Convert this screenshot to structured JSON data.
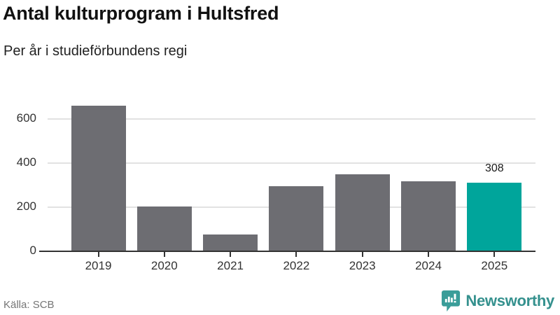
{
  "header": {
    "title": "Antal kulturprogram i Hultsfred",
    "subtitle": "Per år i studieförbundens regi"
  },
  "footer": {
    "source": "Källa: SCB",
    "brand_name": "Newsworthy",
    "brand_icon": "newsworthy-speech-bubble-barchart-icon"
  },
  "colors": {
    "bar_default": "#6d6d72",
    "bar_highlight": "#00a59b",
    "gridline": "#e2e2e2",
    "axis": "#333333",
    "tick_text": "#333333",
    "value_label_text": "#1a1a1a",
    "source_text": "#757575",
    "brand_teal": "#35918e",
    "logo_teal": "#3a9d99"
  },
  "chart_data": {
    "type": "bar",
    "title": "Antal kulturprogram i Hultsfred",
    "subtitle": "Per år i studieförbundens regi",
    "categories": [
      "2019",
      "2020",
      "2021",
      "2022",
      "2023",
      "2024",
      "2025"
    ],
    "values": [
      660,
      200,
      72,
      292,
      346,
      316,
      308
    ],
    "data_labels": [
      null,
      null,
      null,
      null,
      null,
      null,
      "308"
    ],
    "highlight_index": 6,
    "xlabel": "",
    "ylabel": "",
    "ylim": [
      0,
      700
    ],
    "yticks": [
      0,
      200,
      400,
      600
    ],
    "grid": true,
    "legend": false,
    "source": "Källa: SCB"
  }
}
